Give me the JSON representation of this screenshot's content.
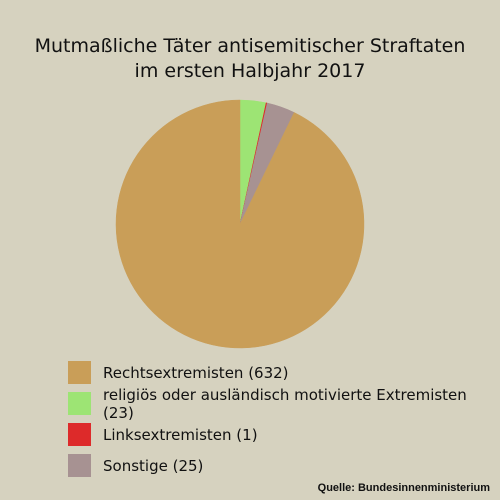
{
  "chart_data": {
    "type": "pie",
    "title_lines": [
      "Mutmaßliche Täter antisemitischer Straftaten",
      "im ersten Halbjahr 2017"
    ],
    "slices": [
      {
        "label": "Rechtsextremisten (632)",
        "value": 632,
        "color": "#c99e58"
      },
      {
        "label": "religiös oder ausländisch motivierte Extremisten (23)",
        "value": 23,
        "color": "#9de474"
      },
      {
        "label": "Linksextremisten (1)",
        "value": 1,
        "color": "#dd2a2a"
      },
      {
        "label": "Sonstige (25)",
        "value": 25,
        "color": "#a79292"
      }
    ],
    "legend_position": "bottom",
    "source": "Quelle: Bundesinnenministerium"
  }
}
